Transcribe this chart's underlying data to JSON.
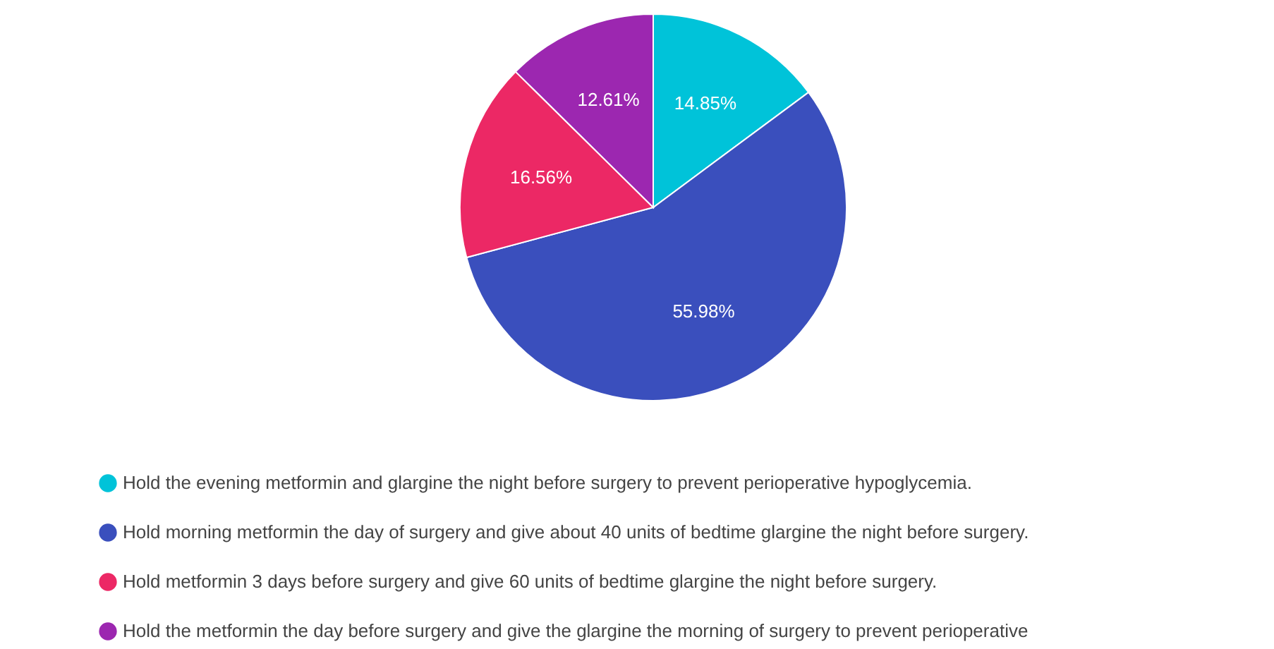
{
  "chart_data": {
    "type": "pie",
    "categories": [
      "Hold the evening metformin and glargine the night before surgery to prevent perioperative hypoglycemia.",
      "Hold morning metformin the day of surgery and give about 40 units of bedtime glargine the night before surgery.",
      "Hold metformin 3 days before surgery and give 60 units of bedtime glargine the night before surgery.",
      "Hold the metformin the day before surgery and give the glargine the morning of surgery to prevent perioperative"
    ],
    "values": [
      14.85,
      55.98,
      16.56,
      12.61
    ],
    "value_labels": [
      "14.85%",
      "55.98%",
      "16.56%",
      "12.61%"
    ],
    "colors": [
      "#00c3d9",
      "#3a4fbd",
      "#ec2865",
      "#9c27b0"
    ],
    "legend": "bottom left"
  }
}
